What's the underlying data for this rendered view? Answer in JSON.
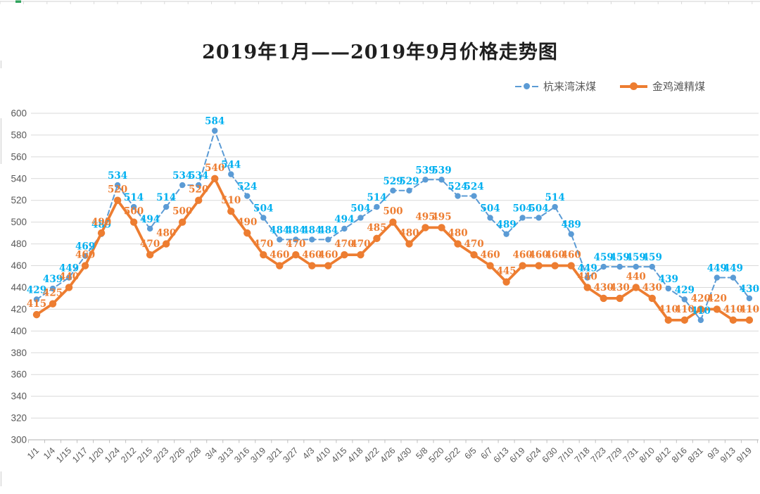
{
  "chart": {
    "title": "2019年1月——2019年9月价格走势图"
  },
  "chart_data": {
    "type": "line",
    "title": "2019年1月——2019年9月价格走势图",
    "categories": [
      "1/1",
      "1/4",
      "1/15",
      "1/17",
      "1/20",
      "1/24",
      "2/12",
      "2/15",
      "2/23",
      "2/26",
      "2/28",
      "3/4",
      "3/13",
      "3/16",
      "3/19",
      "3/21",
      "3/27",
      "4/3",
      "4/10",
      "4/15",
      "4/18",
      "4/22",
      "4/26",
      "4/30",
      "5/8",
      "5/20",
      "5/22",
      "6/5",
      "6/7",
      "6/13",
      "6/19",
      "6/24",
      "6/30",
      "7/10",
      "7/18",
      "7/23",
      "7/29",
      "7/31",
      "8/10",
      "8/12",
      "8/16",
      "8/31",
      "9/3",
      "9/13",
      "9/19"
    ],
    "series": [
      {
        "name": "杭来湾沫煤",
        "color": "#5B9BD5",
        "label_color": "#00B0F0",
        "line_style": "dashed",
        "values": [
          429,
          439,
          449,
          469,
          489,
          534,
          514,
          494,
          514,
          534,
          534,
          584,
          544,
          524,
          504,
          484,
          484,
          484,
          484,
          494,
          504,
          514,
          529,
          529,
          539,
          539,
          524,
          524,
          504,
          489,
          504,
          504,
          514,
          489,
          449,
          459,
          459,
          459,
          459,
          439,
          429,
          410,
          449,
          449,
          430
        ]
      },
      {
        "name": "金鸡滩精煤",
        "color": "#ED7D31",
        "label_color": "#ED7D31",
        "line_style": "solid",
        "values": [
          415,
          425,
          440,
          460,
          490,
          520,
          500,
          470,
          480,
          500,
          520,
          540,
          510,
          490,
          470,
          460,
          470,
          460,
          460,
          470,
          470,
          485,
          500,
          480,
          495,
          495,
          480,
          470,
          460,
          445,
          460,
          460,
          460,
          460,
          440,
          430,
          430,
          440,
          430,
          410,
          410,
          420,
          420,
          410,
          410
        ]
      }
    ],
    "ylim": [
      300,
      600
    ],
    "ytick_step": 20,
    "ytick_labels": [
      "600",
      "580",
      "560",
      "540",
      "520",
      "500",
      "480",
      "460",
      "440",
      "420",
      "400",
      "380",
      "360",
      "340",
      "320",
      "300"
    ],
    "grid": true,
    "legend_position": "top-right",
    "data_labels": true,
    "axis_color": "#BFBFBF",
    "gridline_color": "#D9D9D9",
    "tick_label_color": "#595959",
    "edge_accent_color": "#2FA35C"
  }
}
